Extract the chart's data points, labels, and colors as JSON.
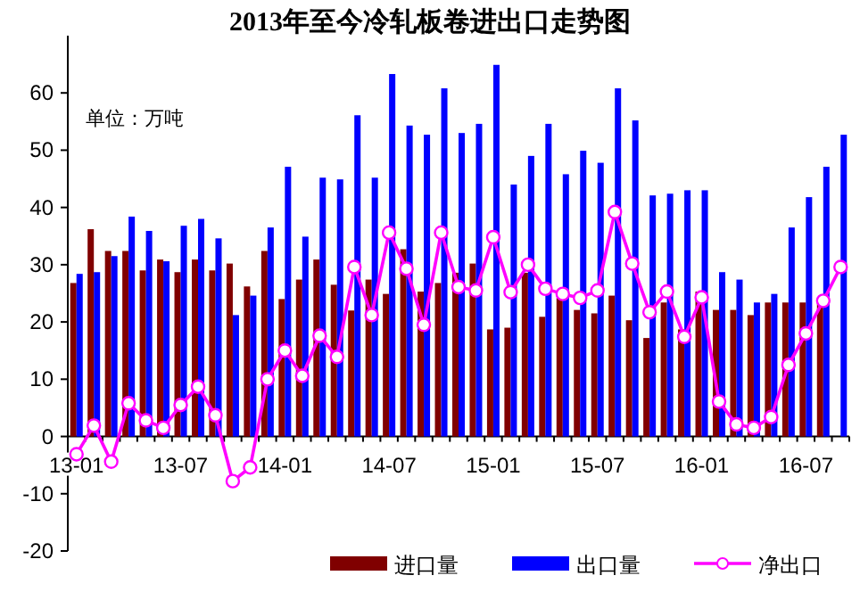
{
  "chart_data": {
    "type": "bar",
    "title": "2013年至今冷轧板卷进出口走势图",
    "annotations": [
      "单位：万吨"
    ],
    "categories": [
      "13-01",
      null,
      null,
      null,
      null,
      null,
      "13-07",
      null,
      null,
      null,
      null,
      null,
      "14-01",
      null,
      null,
      null,
      null,
      null,
      "14-07",
      null,
      null,
      null,
      null,
      null,
      "15-01",
      null,
      null,
      null,
      null,
      null,
      "15-07",
      null,
      null,
      null,
      null,
      null,
      "16-01",
      null,
      null,
      null,
      null,
      null,
      "16-07",
      null,
      null
    ],
    "series": [
      {
        "name": "进口量",
        "color": "#800000",
        "values": [
          26.8,
          36.2,
          32.4,
          32.4,
          29,
          30.9,
          28.7,
          30.9,
          29,
          30.2,
          26.2,
          32.4,
          24,
          27.4,
          30.9,
          26.5,
          22,
          27.4,
          24.9,
          32.7,
          25.3,
          26.8,
          28.6,
          30.2,
          18.7,
          19,
          28.6,
          20.9,
          24.2,
          22.1,
          21.5,
          24.6,
          20.3,
          17.2,
          23.4,
          18.7,
          25.3,
          22.1,
          22.1,
          21.2,
          23.4,
          23.4,
          23.4,
          23.4,
          null
        ]
      },
      {
        "name": "出口量",
        "color": "#0000ff",
        "values": [
          28.4,
          28.7,
          31.5,
          38.4,
          35.9,
          30.6,
          36.8,
          38,
          34.6,
          21.2,
          24.6,
          36.5,
          47.1,
          34.9,
          45.2,
          44.9,
          56.1,
          45.2,
          63.3,
          54.3,
          52.7,
          60.8,
          53,
          54.6,
          64.9,
          44,
          49,
          54.6,
          45.8,
          49.9,
          47.8,
          60.8,
          55.2,
          42.1,
          42.4,
          43,
          43,
          28.7,
          27.4,
          23.4,
          24.9,
          36.5,
          41.8,
          47.1,
          52.7
        ]
      },
      {
        "name": "净出口",
        "type": "line",
        "color": "#ff00ff",
        "marker": "circle",
        "values": [
          -3.1,
          1.9,
          -4.4,
          5.8,
          2.8,
          1.5,
          5.5,
          8.7,
          3.7,
          -7.8,
          -5.4,
          10,
          15,
          10.6,
          17.6,
          13.9,
          29.6,
          21.2,
          35.6,
          29.3,
          19.5,
          35.6,
          26.1,
          25.5,
          34.8,
          25.2,
          30,
          25.8,
          24.9,
          24.2,
          25.5,
          39.2,
          30.2,
          21.7,
          25.3,
          17.4,
          24.3,
          6.1,
          2.1,
          1.5,
          3.4,
          12.5,
          18,
          23.7,
          29.6
        ]
      }
    ],
    "ylim": [
      -20,
      70
    ],
    "yticks": [
      -20,
      -10,
      0,
      10,
      20,
      30,
      40,
      50,
      60
    ],
    "grid": false,
    "legend": "bottom"
  }
}
